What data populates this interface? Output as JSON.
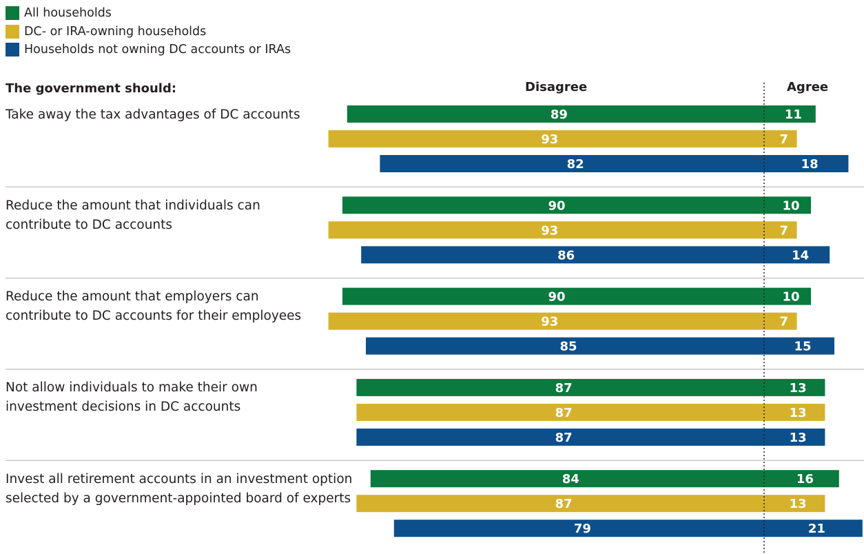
{
  "header": {
    "question_heading": "The government should:",
    "disagree_heading": "Disagree",
    "agree_heading": "Agree"
  },
  "colors": {
    "all": "#0a7a3e",
    "owning": "#d6b22c",
    "not_owning": "#0d4f8b",
    "divider": "#c8c8c8"
  },
  "chart_data": {
    "type": "bar",
    "orientation": "horizontal",
    "stacked": "diverging",
    "legend_position": "top-left",
    "series": [
      {
        "name": "All households",
        "color": "#0a7a3e"
      },
      {
        "name": "DC- or IRA-owning households",
        "color": "#d6b22c"
      },
      {
        "name": "Households not owning DC accounts or IRAs",
        "color": "#0d4f8b"
      }
    ],
    "categories": [
      "Take away the tax advantages of DC accounts",
      "Reduce the amount that individuals can\ncontribute to DC accounts",
      "Reduce the amount that employers can\ncontribute to DC accounts for their employees",
      "Not allow individuals to make their own\ninvestment decisions in DC accounts",
      "Invest all retirement accounts in an investment option\nselected by a government-appointed board of experts"
    ],
    "disagree": [
      [
        89,
        93,
        82
      ],
      [
        90,
        93,
        86
      ],
      [
        90,
        93,
        85
      ],
      [
        87,
        87,
        87
      ],
      [
        84,
        87,
        79
      ]
    ],
    "agree": [
      [
        11,
        7,
        18
      ],
      [
        10,
        7,
        14
      ],
      [
        10,
        7,
        15
      ],
      [
        13,
        13,
        13
      ],
      [
        16,
        13,
        21
      ]
    ]
  }
}
